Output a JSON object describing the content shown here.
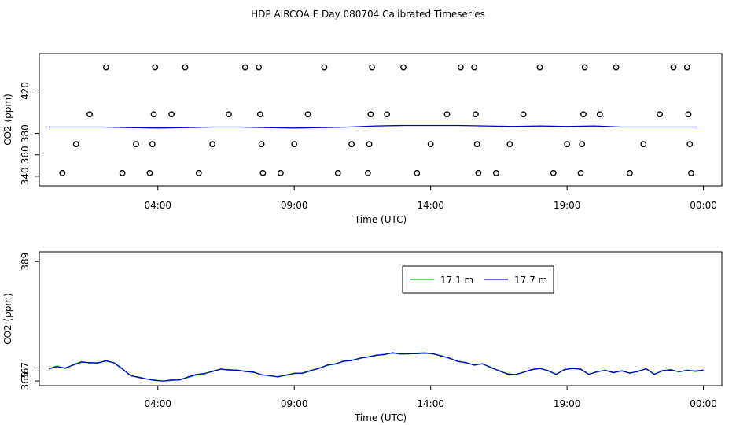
{
  "title": "HDP AIRCOA E  Day 080704  Calibrated Timeseries",
  "colors": {
    "series_1": "#00bb00",
    "series_2": "#0000cc",
    "markers": "#000000"
  },
  "chart_data": [
    {
      "type": "line",
      "xlabel": "Time (UTC)",
      "ylabel": "CO2 (ppm)",
      "x_ticks": [
        "04:00",
        "09:00",
        "14:00",
        "19:00",
        "00:00"
      ],
      "x_tick_hours": [
        4,
        9,
        14,
        19,
        24
      ],
      "xlim": [
        0,
        24.3
      ],
      "y_ticks": [
        340,
        360,
        380,
        420
      ],
      "ylim": [
        334,
        452
      ],
      "grid": false,
      "series": [
        {
          "values_x": [
            0,
            1,
            2,
            3,
            4,
            5,
            6,
            7,
            8,
            9,
            10,
            11,
            12,
            13,
            14,
            15,
            16,
            17,
            18,
            19,
            20,
            21,
            22,
            23,
            23.8
          ],
          "values_y": [
            386,
            386,
            386,
            385.5,
            385,
            385.5,
            386,
            386,
            385.5,
            385,
            385.5,
            386,
            387,
            387.5,
            387.5,
            387.5,
            387,
            386.5,
            387,
            386.5,
            387,
            386,
            386,
            386,
            386
          ]
        }
      ],
      "markers": [
        {
          "x": 0.5,
          "y": 343
        },
        {
          "x": 1.0,
          "y": 370
        },
        {
          "x": 1.5,
          "y": 398
        },
        {
          "x": 2.1,
          "y": 442
        },
        {
          "x": 2.7,
          "y": 343
        },
        {
          "x": 3.2,
          "y": 370
        },
        {
          "x": 3.7,
          "y": 343
        },
        {
          "x": 3.8,
          "y": 370
        },
        {
          "x": 3.85,
          "y": 398
        },
        {
          "x": 3.9,
          "y": 442
        },
        {
          "x": 4.5,
          "y": 398
        },
        {
          "x": 5.0,
          "y": 442
        },
        {
          "x": 5.5,
          "y": 343
        },
        {
          "x": 6.0,
          "y": 370
        },
        {
          "x": 6.6,
          "y": 398
        },
        {
          "x": 7.2,
          "y": 442
        },
        {
          "x": 7.7,
          "y": 442
        },
        {
          "x": 7.75,
          "y": 398
        },
        {
          "x": 7.8,
          "y": 370
        },
        {
          "x": 7.85,
          "y": 343
        },
        {
          "x": 8.5,
          "y": 343
        },
        {
          "x": 9.0,
          "y": 370
        },
        {
          "x": 9.5,
          "y": 398
        },
        {
          "x": 10.1,
          "y": 442
        },
        {
          "x": 10.6,
          "y": 343
        },
        {
          "x": 11.1,
          "y": 370
        },
        {
          "x": 11.7,
          "y": 343
        },
        {
          "x": 11.75,
          "y": 370
        },
        {
          "x": 11.8,
          "y": 398
        },
        {
          "x": 11.85,
          "y": 442
        },
        {
          "x": 12.4,
          "y": 398
        },
        {
          "x": 13.0,
          "y": 442
        },
        {
          "x": 13.5,
          "y": 343
        },
        {
          "x": 14.0,
          "y": 370
        },
        {
          "x": 14.6,
          "y": 398
        },
        {
          "x": 15.1,
          "y": 442
        },
        {
          "x": 15.6,
          "y": 442
        },
        {
          "x": 15.65,
          "y": 398
        },
        {
          "x": 15.7,
          "y": 370
        },
        {
          "x": 15.75,
          "y": 343
        },
        {
          "x": 16.4,
          "y": 343
        },
        {
          "x": 16.9,
          "y": 370
        },
        {
          "x": 17.4,
          "y": 398
        },
        {
          "x": 18.0,
          "y": 442
        },
        {
          "x": 18.5,
          "y": 343
        },
        {
          "x": 19.0,
          "y": 370
        },
        {
          "x": 19.5,
          "y": 343
        },
        {
          "x": 19.55,
          "y": 370
        },
        {
          "x": 19.6,
          "y": 398
        },
        {
          "x": 19.65,
          "y": 442
        },
        {
          "x": 20.2,
          "y": 398
        },
        {
          "x": 20.8,
          "y": 442
        },
        {
          "x": 21.3,
          "y": 343
        },
        {
          "x": 21.8,
          "y": 370
        },
        {
          "x": 22.4,
          "y": 398
        },
        {
          "x": 22.9,
          "y": 442
        },
        {
          "x": 23.4,
          "y": 442
        },
        {
          "x": 23.45,
          "y": 398
        },
        {
          "x": 23.5,
          "y": 370
        },
        {
          "x": 23.55,
          "y": 343
        }
      ]
    },
    {
      "type": "line",
      "xlabel": "Time (UTC)",
      "ylabel": "CO2 (ppm)",
      "x_ticks": [
        "04:00",
        "09:00",
        "14:00",
        "19:00",
        "00:00"
      ],
      "x_tick_hours": [
        4,
        9,
        14,
        19,
        24
      ],
      "xlim": [
        0,
        24.3
      ],
      "y_ticks": [
        365,
        367,
        389
      ],
      "ylim": [
        364.7,
        390.3
      ],
      "grid": false,
      "legend": "top-right",
      "series": [
        {
          "name": "17.1 m",
          "x": [
            0,
            0.3,
            0.6,
            0.9,
            1.2,
            1.5,
            1.8,
            2.1,
            2.4,
            2.7,
            3.0,
            3.3,
            3.6,
            3.9,
            4.2,
            4.5,
            4.8,
            5.1,
            5.4,
            5.7,
            6.0,
            6.3,
            6.6,
            6.9,
            7.2,
            7.5,
            7.8,
            8.1,
            8.4,
            8.7,
            9.0,
            9.3,
            9.6,
            9.9,
            10.2,
            10.5,
            10.8,
            11.1,
            11.4,
            11.7,
            12.0,
            12.3,
            12.6,
            12.9,
            13.2,
            13.5,
            13.8,
            14.1,
            14.4,
            14.7,
            15.0,
            15.3,
            15.6,
            15.9,
            16.2,
            16.5,
            16.8,
            17.1,
            17.4,
            17.7,
            18.0,
            18.3,
            18.6,
            18.9,
            19.2,
            19.5,
            19.8,
            20.1,
            20.4,
            20.7,
            21.0,
            21.3,
            21.6,
            21.9,
            22.2,
            22.5,
            22.8,
            23.1,
            23.4,
            23.7,
            24.0
          ],
          "y": [
            367.5,
            368.0,
            367.5,
            368.3,
            368.9,
            368.6,
            368.7,
            369.0,
            368.7,
            367.5,
            366.0,
            365.8,
            365.4,
            365.2,
            365.0,
            365.1,
            365.3,
            365.7,
            366.2,
            366.4,
            367.0,
            367.3,
            367.3,
            367.1,
            367.0,
            366.7,
            366.3,
            366.0,
            365.9,
            366.1,
            366.6,
            366.5,
            367.0,
            367.6,
            368.1,
            368.5,
            368.9,
            369.2,
            369.5,
            369.9,
            370.1,
            370.4,
            370.6,
            370.5,
            370.4,
            370.6,
            370.7,
            370.4,
            370.1,
            369.5,
            369.0,
            368.6,
            368.3,
            368.4,
            367.8,
            367.0,
            366.5,
            366.2,
            366.8,
            367.2,
            367.6,
            367.0,
            366.4,
            367.2,
            367.6,
            367.3,
            366.4,
            366.8,
            367.2,
            366.6,
            367.1,
            366.5,
            367.0,
            367.4,
            366.4,
            367.0,
            367.3,
            366.8,
            367.2,
            366.9,
            367.1
          ]
        },
        {
          "name": "17.7 m",
          "x": [
            0,
            0.3,
            0.6,
            0.9,
            1.2,
            1.5,
            1.8,
            2.1,
            2.4,
            2.7,
            3.0,
            3.3,
            3.6,
            3.9,
            4.2,
            4.5,
            4.8,
            5.1,
            5.4,
            5.7,
            6.0,
            6.3,
            6.6,
            6.9,
            7.2,
            7.5,
            7.8,
            8.1,
            8.4,
            8.7,
            9.0,
            9.3,
            9.6,
            9.9,
            10.2,
            10.5,
            10.8,
            11.1,
            11.4,
            11.7,
            12.0,
            12.3,
            12.6,
            12.9,
            13.2,
            13.5,
            13.8,
            14.1,
            14.4,
            14.7,
            15.0,
            15.3,
            15.6,
            15.9,
            16.2,
            16.5,
            16.8,
            17.1,
            17.4,
            17.7,
            18.0,
            18.3,
            18.6,
            18.9,
            19.2,
            19.5,
            19.8,
            20.1,
            20.4,
            20.7,
            21.0,
            21.3,
            21.6,
            21.9,
            22.2,
            22.5,
            22.8,
            23.1,
            23.4,
            23.7,
            24.0
          ],
          "y": [
            367.4,
            367.9,
            367.6,
            368.2,
            368.8,
            368.7,
            368.6,
            369.1,
            368.6,
            367.4,
            366.1,
            365.7,
            365.4,
            365.1,
            365.0,
            365.2,
            365.2,
            365.8,
            366.3,
            366.5,
            366.9,
            367.4,
            367.2,
            367.2,
            366.9,
            366.8,
            366.2,
            366.1,
            365.8,
            366.2,
            366.5,
            366.6,
            367.1,
            367.5,
            368.2,
            368.4,
            369.0,
            369.1,
            369.6,
            369.8,
            370.2,
            370.3,
            370.7,
            370.4,
            370.5,
            370.5,
            370.6,
            370.5,
            370.0,
            369.6,
            368.9,
            368.7,
            368.2,
            368.5,
            367.7,
            367.1,
            366.4,
            366.3,
            366.7,
            367.3,
            367.5,
            367.1,
            366.3,
            367.3,
            367.5,
            367.4,
            366.3,
            366.9,
            367.1,
            366.7,
            367.0,
            366.6,
            366.9,
            367.5,
            366.3,
            367.1,
            367.2,
            366.9,
            367.1,
            367.0,
            367.2
          ]
        }
      ]
    }
  ]
}
